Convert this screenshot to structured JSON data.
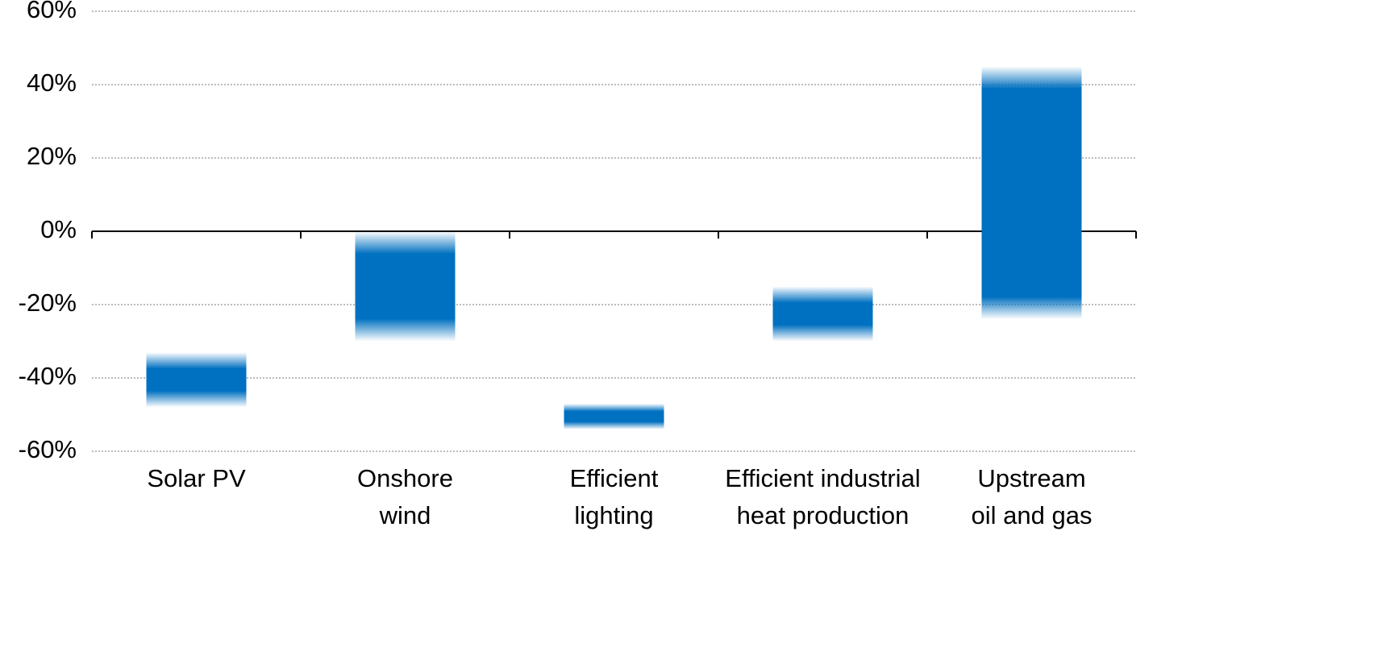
{
  "chart_data": {
    "type": "range_bar",
    "categories": [
      [
        "Solar PV"
      ],
      [
        "Onshore",
        "wind"
      ],
      [
        "Efficient",
        "lighting"
      ],
      [
        "Efficient industrial",
        "heat production"
      ],
      [
        "Upstream",
        "oil and gas"
      ]
    ],
    "low": [
      -48,
      -30,
      -54,
      -30,
      -24
    ],
    "high": [
      -33,
      0,
      -47,
      -15,
      45
    ],
    "color": "#0070c0",
    "ylim": [
      -60,
      60
    ],
    "yticks": [
      {
        "value": -60,
        "label": "-60%"
      },
      {
        "value": -40,
        "label": "-40%"
      },
      {
        "value": -20,
        "label": "-20%"
      },
      {
        "value": 0,
        "label": "0%"
      },
      {
        "value": 20,
        "label": "20%"
      },
      {
        "value": 40,
        "label": "40%"
      },
      {
        "value": 60,
        "label": "60%"
      }
    ],
    "grid": true
  }
}
